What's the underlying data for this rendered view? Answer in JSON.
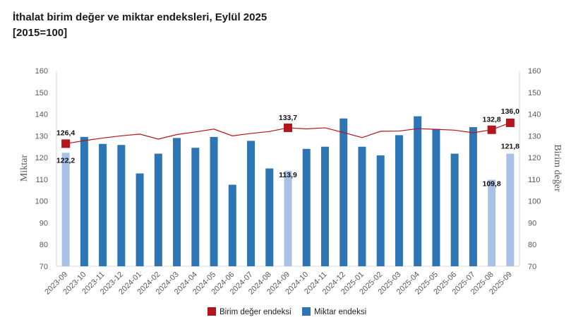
{
  "title": "İthalat birim değer ve miktar endeksleri, Eylül 2025",
  "subtitle": "[2015=100]",
  "chart_data": {
    "type": "bar+line",
    "categories": [
      "2023-09",
      "2023-10",
      "2023-11",
      "2023-12",
      "2024-01",
      "2024-02",
      "2024-03",
      "2024-04",
      "2024-05",
      "2024-06",
      "2024-07",
      "2024-08",
      "2024-09",
      "2024-10",
      "2024-11",
      "2024-12",
      "2025-01",
      "2025-02",
      "2025-03",
      "2025-04",
      "2025-05",
      "2025-06",
      "2025-07",
      "2025-08",
      "2025-09"
    ],
    "ylim": [
      70,
      160
    ],
    "yticks": [
      "160",
      "150",
      "140",
      "130",
      "120",
      "110",
      "100",
      "90",
      "80",
      "70"
    ],
    "left_axis_title": "Miktar",
    "right_axis_title": "Birim değer",
    "series": [
      {
        "name": "Miktar endeksi",
        "kind": "bar",
        "color": "#2e75b6",
        "highlight_color": "#a9c1e7",
        "values": [
          122.2,
          129.5,
          126.3,
          125.8,
          112.7,
          121.8,
          129.0,
          124.5,
          129.5,
          107.5,
          127.7,
          115.0,
          113.9,
          124.0,
          125.0,
          138.0,
          125.0,
          121.0,
          130.3,
          139.0,
          133.2,
          121.8,
          134.0,
          109.8,
          121.8
        ],
        "highlighted": [
          0,
          12,
          23,
          24
        ],
        "labels": [
          "122,2",
          "113,9",
          "109,8",
          "121,8"
        ]
      },
      {
        "name": "Birim değer endeksi",
        "kind": "line",
        "color": "#b2151b",
        "values": [
          126.4,
          127.8,
          129.0,
          130.0,
          130.8,
          128.5,
          130.6,
          131.8,
          133.1,
          130.0,
          131.1,
          132.0,
          133.7,
          133.2,
          133.7,
          131.5,
          129.2,
          132.1,
          132.2,
          133.3,
          133.0,
          132.6,
          131.4,
          132.8,
          136.0
        ],
        "highlighted": [
          0,
          12,
          23,
          24
        ],
        "labels": [
          "126,4",
          "133,7",
          "132,8",
          "136,0"
        ]
      }
    ],
    "legend": {
      "position": "bottom",
      "items": [
        {
          "label": "Birim değer endeksi",
          "color": "#b2151b"
        },
        {
          "label": "Miktar endeksi",
          "color": "#2e75b6"
        }
      ]
    }
  }
}
